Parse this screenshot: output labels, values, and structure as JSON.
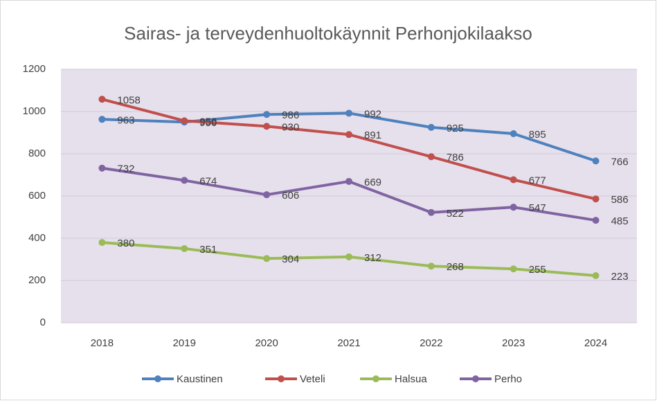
{
  "chart_data": {
    "type": "line",
    "title": "Sairas- ja terveydenhuoltokäynnit  Perhonjokilaakso",
    "categories": [
      "2018",
      "2019",
      "2020",
      "2021",
      "2022",
      "2023",
      "2024"
    ],
    "series": [
      {
        "name": "Kaustinen",
        "color": "#4f81bd",
        "values": [
          963,
          950,
          986,
          992,
          925,
          895,
          766
        ]
      },
      {
        "name": "Veteli",
        "color": "#c0504d",
        "values": [
          1058,
          956,
          930,
          891,
          786,
          677,
          586
        ]
      },
      {
        "name": "Halsua",
        "color": "#9bbb59",
        "values": [
          380,
          351,
          304,
          312,
          268,
          255,
          223
        ]
      },
      {
        "name": "Perho",
        "color": "#8064a2",
        "values": [
          732,
          674,
          606,
          669,
          522,
          547,
          485
        ]
      }
    ],
    "ylim": [
      0,
      1200
    ],
    "yticks": [
      0,
      200,
      400,
      600,
      800,
      1000,
      1200
    ],
    "grid": true,
    "legend": "bottom"
  }
}
